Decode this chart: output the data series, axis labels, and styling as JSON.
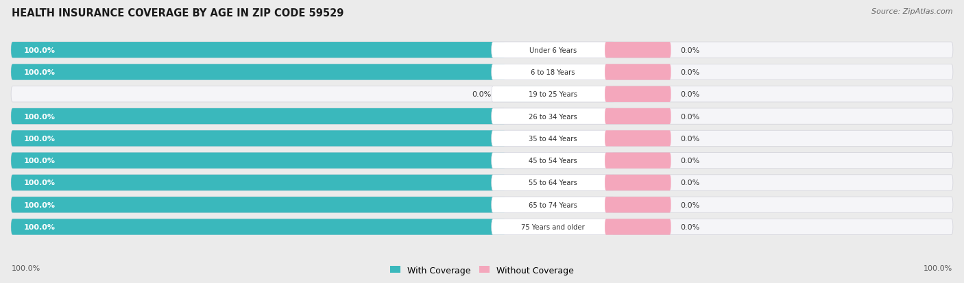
{
  "title": "HEALTH INSURANCE COVERAGE BY AGE IN ZIP CODE 59529",
  "source": "Source: ZipAtlas.com",
  "categories": [
    "Under 6 Years",
    "6 to 18 Years",
    "19 to 25 Years",
    "26 to 34 Years",
    "35 to 44 Years",
    "45 to 54 Years",
    "55 to 64 Years",
    "65 to 74 Years",
    "75 Years and older"
  ],
  "with_coverage": [
    100.0,
    100.0,
    0.0,
    100.0,
    100.0,
    100.0,
    100.0,
    100.0,
    100.0
  ],
  "without_coverage": [
    0.0,
    0.0,
    0.0,
    0.0,
    0.0,
    0.0,
    0.0,
    0.0,
    0.0
  ],
  "color_with": "#3ab8bc",
  "color_with_light": "#a8dfe0",
  "color_without": "#f4a7bc",
  "bg_color": "#ebebeb",
  "bar_bg": "#e0e0e8",
  "bar_inner_bg": "#f5f5f8",
  "text_color_with": "#ffffff",
  "text_color_dark": "#333333",
  "legend_with": "With Coverage",
  "legend_without": "Without Coverage",
  "left_axis_label": "100.0%",
  "right_axis_label": "100.0%"
}
